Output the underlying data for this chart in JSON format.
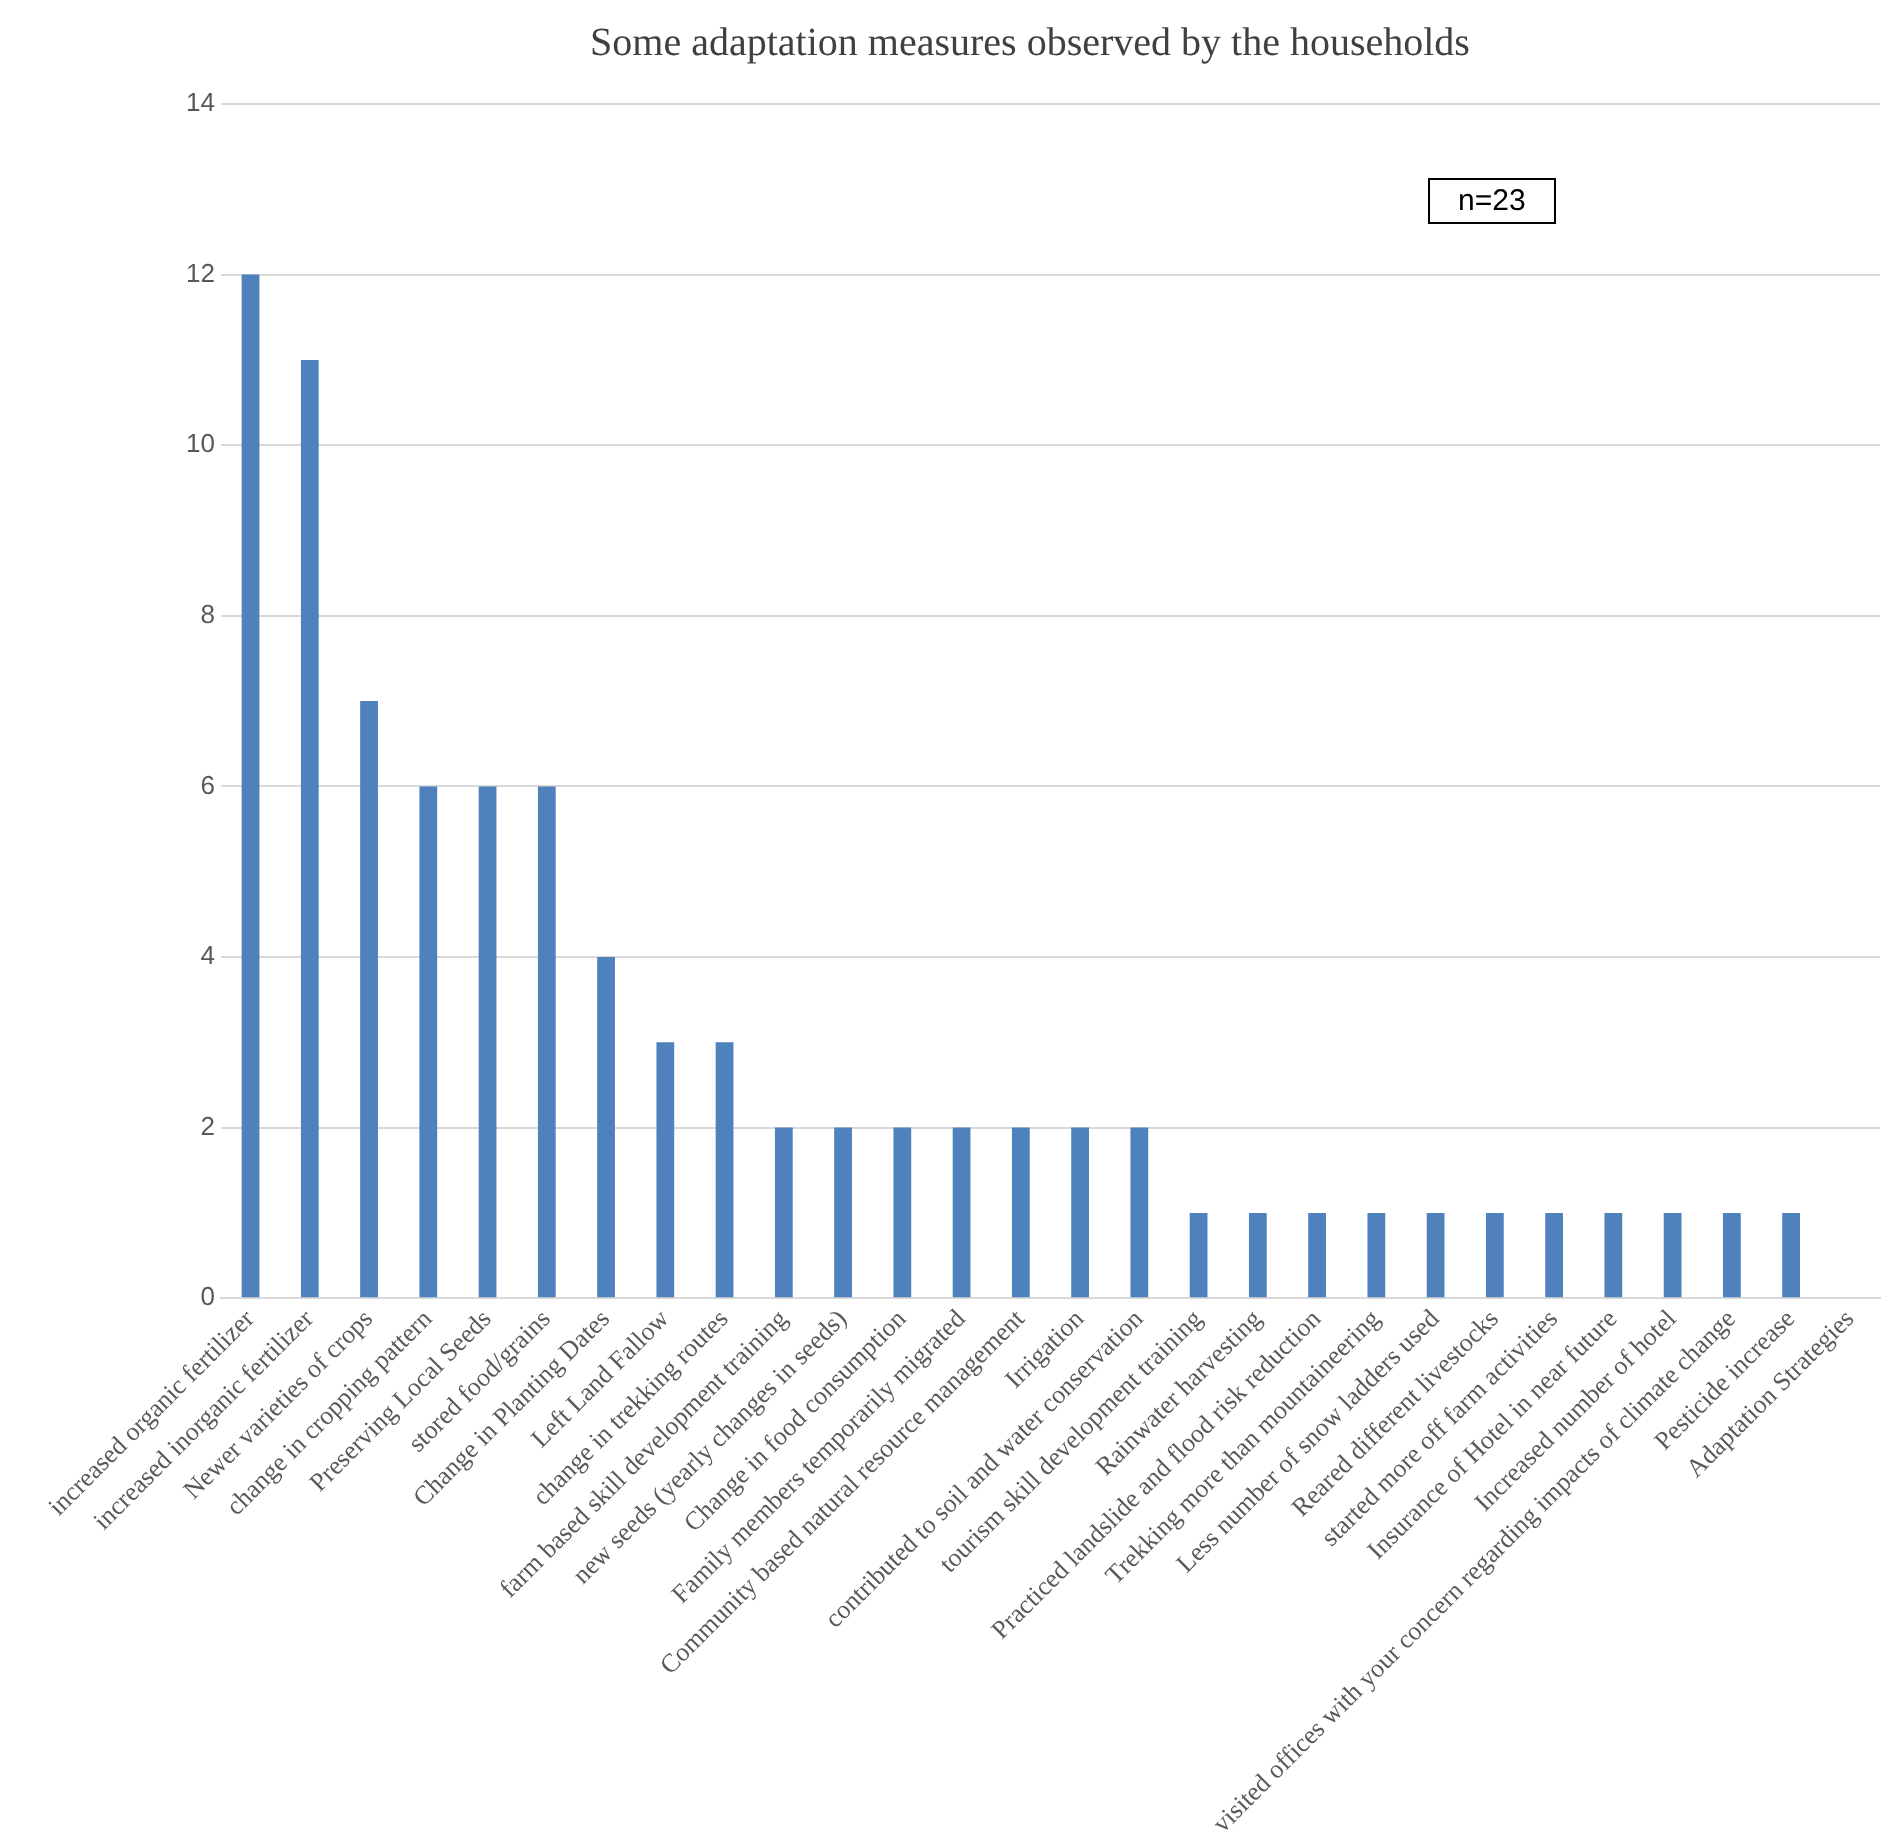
{
  "chart_data": {
    "type": "bar",
    "title": "Some adaptation measures observed by the households",
    "categories": [
      "increased organic fertilizer",
      "increased inorganic fertilizer",
      "Newer varieties of crops",
      "change in cropping pattern",
      "Preserving Local Seeds",
      "stored food/grains",
      "Change in Planting Dates",
      "Left Land Fallow",
      "change in trekking routes",
      "farm based skill development training",
      "new seeds (yearly changes in seeds)",
      "Change in food consumption",
      "Family members temporarily migrated",
      "Community based natural resource management",
      "Irrigation",
      "contributed to soil and water conservation",
      "tourism skill development training",
      "Rainwater harvesting",
      "Practiced landslide and flood risk reduction",
      "Trekking more than mountaineering",
      "Less number of snow ladders used",
      "Reared different livestocks",
      "started more off farm activities",
      "Insurance of Hotel in near future",
      "Increased number of hotel",
      "visited offices with your concern regarding impacts of climate change",
      "Pesticide increase",
      "Adaptation Strategies"
    ],
    "values": [
      12,
      11,
      7,
      6,
      6,
      6,
      4,
      3,
      3,
      2,
      2,
      2,
      2,
      2,
      2,
      2,
      1,
      1,
      1,
      1,
      1,
      1,
      1,
      1,
      1,
      1,
      1,
      null
    ],
    "color": "#4f81bd",
    "ylim": [
      0,
      14
    ],
    "yticks": [
      0,
      2,
      4,
      6,
      8,
      10,
      12,
      14
    ],
    "grid": "y",
    "annotations": [
      "n=23"
    ]
  }
}
